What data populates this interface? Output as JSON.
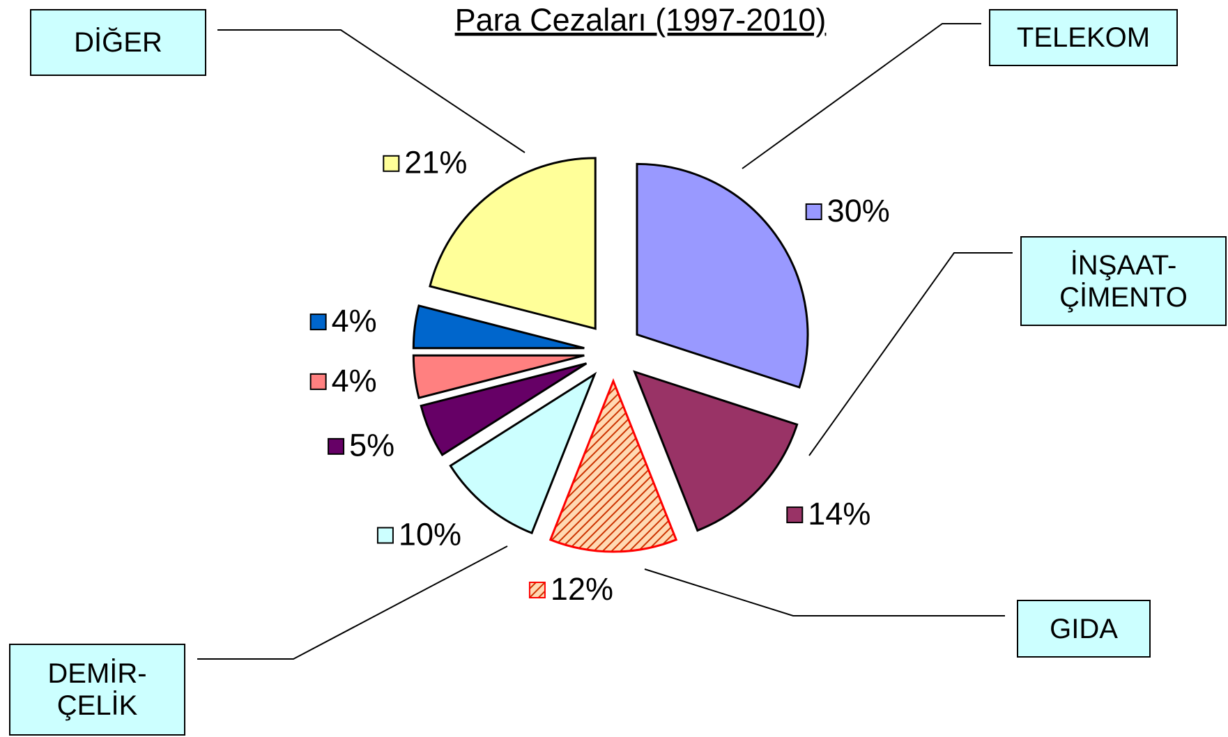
{
  "chart_data": {
    "type": "pie",
    "title": "Para Cezaları (1997-2010)",
    "categories": [
      "TELEKOM",
      "İNŞAAT-\nÇİMENTO",
      "GIDA",
      "DEMİR-\nÇELİK",
      null,
      null,
      null,
      "DİĞER"
    ],
    "values": [
      30,
      14,
      12,
      10,
      5,
      4,
      4,
      21
    ],
    "value_labels": [
      "30%",
      "14%",
      "12%",
      "10%",
      "5%",
      "4%",
      "4%",
      "21%"
    ],
    "colors": [
      "#9999ff",
      "#993366",
      "#ff0000",
      "#ccffff",
      "#660066",
      "#ff8080",
      "#0066cc",
      "#ffff99"
    ],
    "patterns": [
      null,
      null,
      "hatch",
      null,
      null,
      null,
      null,
      null
    ]
  }
}
